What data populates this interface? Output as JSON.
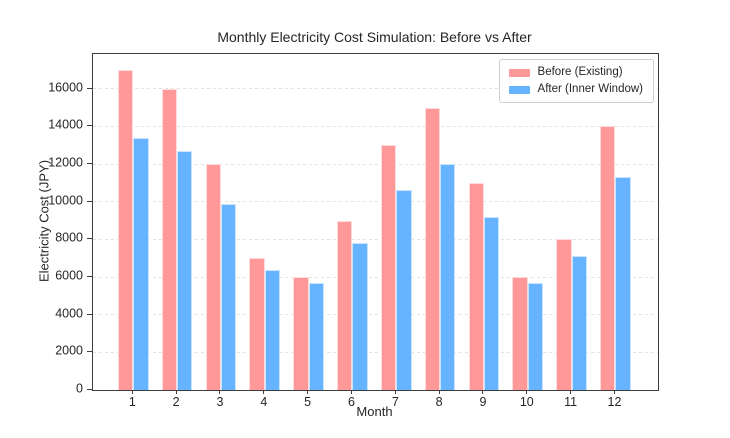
{
  "chart_data": {
    "type": "bar",
    "title": "Monthly Electricity Cost Simulation: Before vs After",
    "xlabel": "Month",
    "ylabel": "Electricity Cost (JPY)",
    "categories": [
      "1",
      "2",
      "3",
      "4",
      "5",
      "6",
      "7",
      "8",
      "9",
      "10",
      "11",
      "12"
    ],
    "series": [
      {
        "name": "Before (Existing)",
        "color": "#ff9999",
        "values": [
          17000,
          16000,
          12000,
          7000,
          6000,
          9000,
          13000,
          15000,
          11000,
          6000,
          8000,
          14000
        ]
      },
      {
        "name": "After (Inner Window)",
        "color": "#66b3ff",
        "values": [
          13400,
          12700,
          9900,
          6400,
          5700,
          7800,
          10600,
          12000,
          9200,
          5700,
          7100,
          11300
        ]
      }
    ],
    "ylim": [
      0,
      17850
    ],
    "yticks": [
      0,
      2000,
      4000,
      6000,
      8000,
      10000,
      12000,
      14000,
      16000
    ],
    "bar_width_units": 0.35,
    "grid": {
      "axis": "y",
      "style": "dashed",
      "color": "#e2e2e2"
    },
    "legend_position": "upper-right",
    "frame_color": "#3d3d3d",
    "text_color": "#262626"
  }
}
